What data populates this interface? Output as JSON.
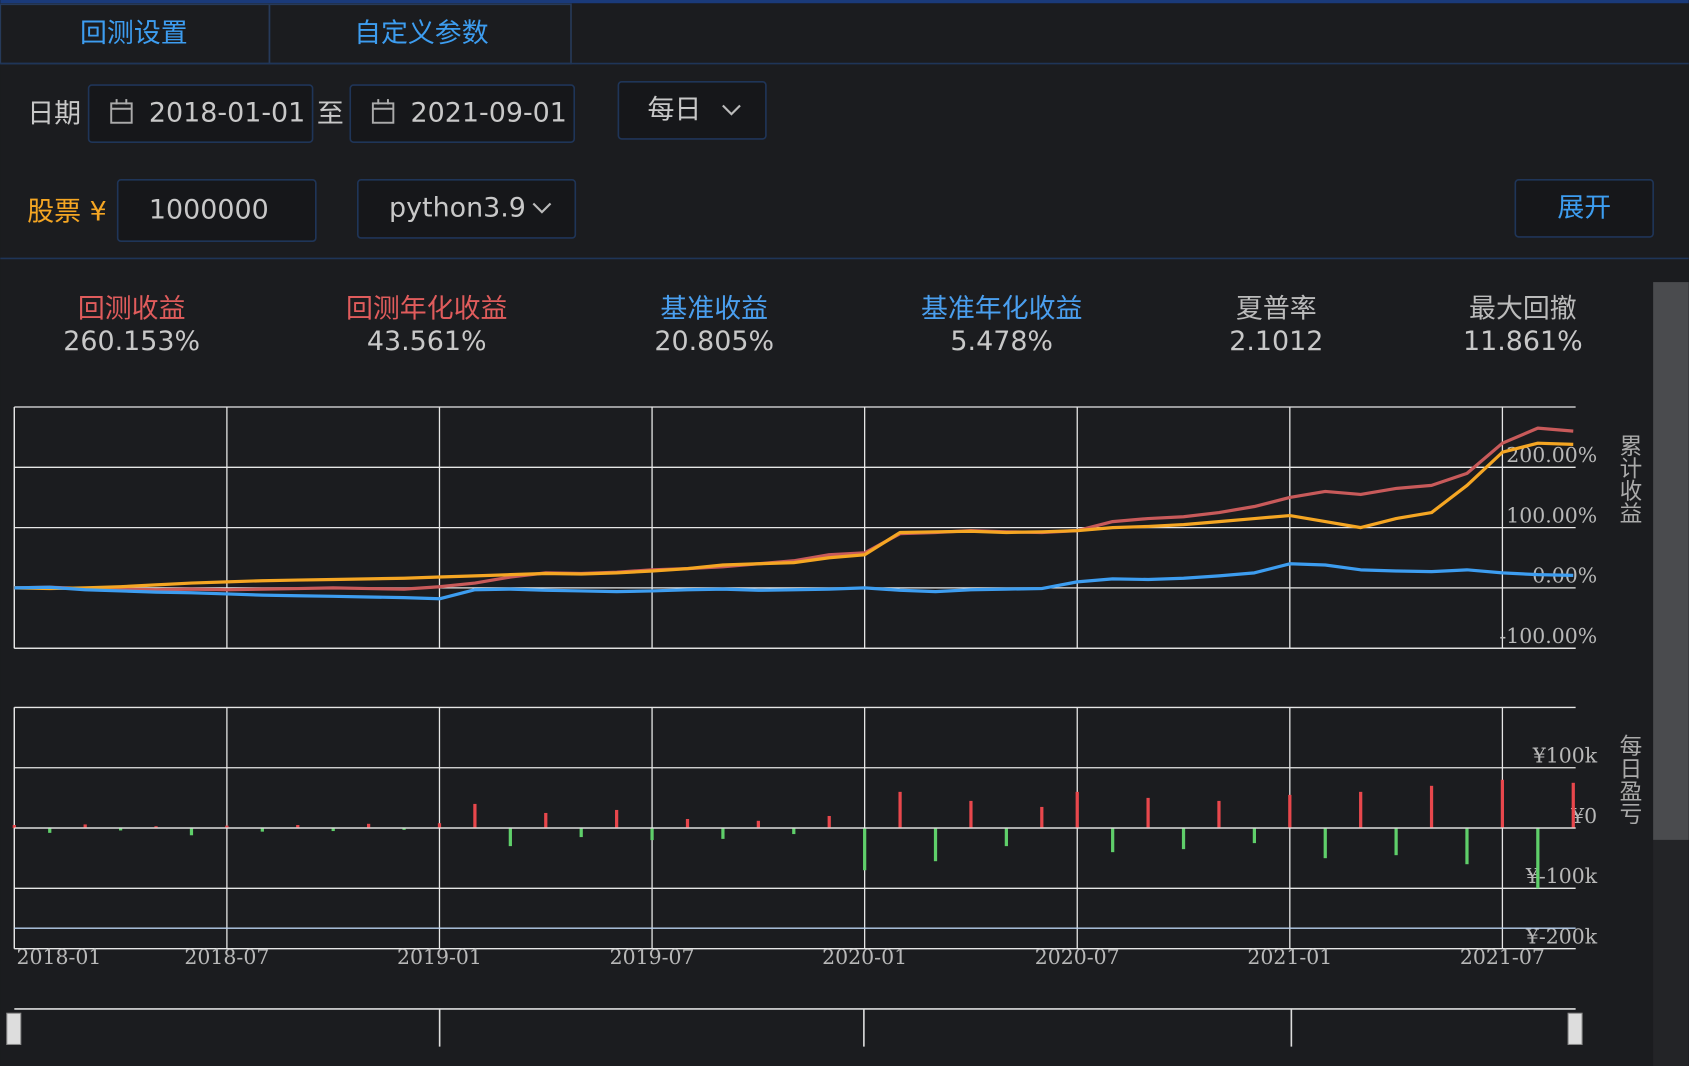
{
  "tabs": [
    "回测设置",
    "自定义参数"
  ],
  "form": {
    "date_label": "日期",
    "start_date": "2018-01-01",
    "to": "至",
    "end_date": "2021-09-01",
    "frequency": "每日",
    "stock_label": "股票 ¥",
    "capital": "1000000",
    "python": "python3.9",
    "expand": "展开"
  },
  "metrics": [
    {
      "label": "回测收益",
      "value": "260.153%"
    },
    {
      "label": "回测年化收益",
      "value": "43.561%"
    },
    {
      "label": "基准收益",
      "value": "20.805%"
    },
    {
      "label": "基准年化收益",
      "value": "5.478%"
    },
    {
      "label": "夏普率",
      "value": "2.1012"
    },
    {
      "label": "最大回撤",
      "value": "11.861%"
    }
  ],
  "chart_data": [
    {
      "type": "line",
      "y_label": "累计收益",
      "x": [
        "2018-01",
        "2018-02",
        "2018-03",
        "2018-04",
        "2018-05",
        "2018-06",
        "2018-07",
        "2018-08",
        "2018-09",
        "2018-10",
        "2018-11",
        "2018-12",
        "2019-01",
        "2019-02",
        "2019-03",
        "2019-04",
        "2019-05",
        "2019-06",
        "2019-07",
        "2019-08",
        "2019-09",
        "2019-10",
        "2019-11",
        "2019-12",
        "2020-01",
        "2020-02",
        "2020-03",
        "2020-04",
        "2020-05",
        "2020-06",
        "2020-07",
        "2020-08",
        "2020-09",
        "2020-10",
        "2020-11",
        "2020-12",
        "2021-01",
        "2021-02",
        "2021-03",
        "2021-04",
        "2021-05",
        "2021-06",
        "2021-07",
        "2021-08",
        "2021-09"
      ],
      "series": [
        {
          "color": "#c85a5a",
          "values": [
            0,
            1,
            -1,
            -2,
            -3,
            -2,
            -3,
            -2,
            -1,
            0,
            -1,
            -2,
            2,
            8,
            18,
            25,
            24,
            26,
            30,
            32,
            35,
            40,
            45,
            55,
            58,
            90,
            92,
            95,
            93,
            92,
            95,
            110,
            115,
            118,
            125,
            135,
            150,
            160,
            155,
            165,
            170,
            190,
            240,
            265,
            260
          ]
        },
        {
          "color": "#f5a623",
          "values": [
            0,
            -1,
            0,
            2,
            5,
            8,
            10,
            12,
            13,
            14,
            15,
            16,
            18,
            20,
            22,
            24,
            23,
            25,
            28,
            32,
            38,
            40,
            42,
            50,
            55,
            92,
            93,
            94,
            92,
            93,
            95,
            100,
            102,
            105,
            110,
            115,
            120,
            110,
            100,
            115,
            125,
            170,
            225,
            240,
            238
          ]
        },
        {
          "color": "#3d9df0",
          "values": [
            0,
            1,
            -3,
            -5,
            -7,
            -8,
            -10,
            -12,
            -13,
            -14,
            -15,
            -16,
            -18,
            -3,
            -2,
            -4,
            -5,
            -6,
            -5,
            -3,
            -2,
            -4,
            -3,
            -2,
            0,
            -4,
            -6,
            -3,
            -2,
            -1,
            10,
            15,
            14,
            16,
            20,
            25,
            40,
            38,
            30,
            28,
            27,
            30,
            25,
            22,
            20.8
          ]
        }
      ],
      "ylim": [
        -100,
        300
      ],
      "yticks": [
        {
          "value": -100,
          "label": "-100.00%"
        },
        {
          "value": 0,
          "label": "0.00%"
        },
        {
          "value": 100,
          "label": "100.00%"
        },
        {
          "value": 200,
          "label": "200.00%"
        }
      ],
      "grid": true
    },
    {
      "type": "bar",
      "y_label": "每日盈亏",
      "x": [
        "2018-01",
        "2018-02",
        "2018-03",
        "2018-04",
        "2018-05",
        "2018-06",
        "2018-07",
        "2018-08",
        "2018-09",
        "2018-10",
        "2018-11",
        "2018-12",
        "2019-01",
        "2019-02",
        "2019-03",
        "2019-04",
        "2019-05",
        "2019-06",
        "2019-07",
        "2019-08",
        "2019-09",
        "2019-10",
        "2019-11",
        "2019-12",
        "2020-01",
        "2020-02",
        "2020-03",
        "2020-04",
        "2020-05",
        "2020-06",
        "2020-07",
        "2020-08",
        "2020-09",
        "2020-10",
        "2020-11",
        "2020-12",
        "2021-01",
        "2021-02",
        "2021-03",
        "2021-04",
        "2021-05",
        "2021-06",
        "2021-07",
        "2021-08",
        "2021-09"
      ],
      "values": [
        5000,
        -8000,
        6000,
        -4000,
        3000,
        -12000,
        4000,
        -6000,
        5000,
        -5000,
        7000,
        -3000,
        8000,
        40000,
        -30000,
        25000,
        -15000,
        30000,
        -20000,
        15000,
        -18000,
        12000,
        -10000,
        20000,
        -70000,
        60000,
        -55000,
        45000,
        -30000,
        35000,
        60000,
        -40000,
        50000,
        -35000,
        45000,
        -25000,
        55000,
        -50000,
        60000,
        -45000,
        70000,
        -60000,
        80000,
        -100000,
        75000
      ],
      "up_color": "#e8474c",
      "down_color": "#5fcf6a",
      "ylim": [
        -200000,
        200000
      ],
      "yticks": [
        {
          "value": -200000,
          "label": "¥-200k"
        },
        {
          "value": -100000,
          "label": "¥-100k"
        },
        {
          "value": 0,
          "label": "¥0"
        },
        {
          "value": 100000,
          "label": "¥100k"
        }
      ],
      "xticks": [
        "2018-01",
        "2018-07",
        "2019-01",
        "2019-07",
        "2020-01",
        "2020-07",
        "2021-01",
        "2021-07"
      ],
      "grid": true
    }
  ]
}
